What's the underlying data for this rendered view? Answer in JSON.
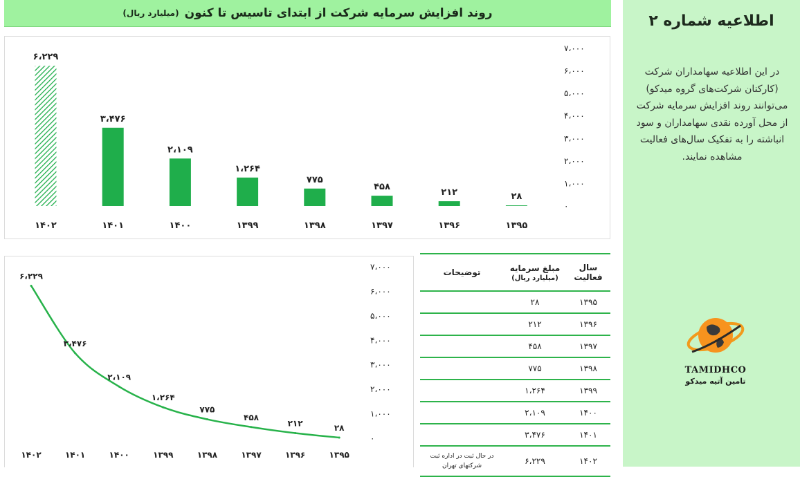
{
  "header": {
    "title": "روند افزایش سرمایه شرکت از ابتدای تاسیس تا کنون",
    "unit": "(میلیارد ریال)"
  },
  "colors": {
    "bar": "#1fae4b",
    "line": "#27b24a",
    "title_bg": "#9ff29f",
    "side_bg": "#c8f5c8"
  },
  "chart_data": [
    {
      "type": "bar",
      "categories": [
        "۱۴۰۲",
        "۱۴۰۱",
        "۱۴۰۰",
        "۱۳۹۹",
        "۱۳۹۸",
        "۱۳۹۷",
        "۱۳۹۶",
        "۱۳۹۵"
      ],
      "values": [
        6229,
        3476,
        2109,
        1264,
        775,
        458,
        212,
        28
      ],
      "value_labels": [
        "۶،۲۲۹",
        "۳،۴۷۶",
        "۲،۱۰۹",
        "۱،۲۶۴",
        "۷۷۵",
        "۴۵۸",
        "۲۱۲",
        "۲۸"
      ],
      "hatched_category": "۱۴۰۲",
      "ylim": [
        0,
        7000
      ],
      "yticks": [
        "۰",
        "۱،۰۰۰",
        "۲،۰۰۰",
        "۳،۰۰۰",
        "۴،۰۰۰",
        "۵،۰۰۰",
        "۶،۰۰۰",
        "۷،۰۰۰"
      ],
      "yaxis_side": "right",
      "grid": false
    },
    {
      "type": "line",
      "categories": [
        "۱۴۰۲",
        "۱۴۰۱",
        "۱۴۰۰",
        "۱۳۹۹",
        "۱۳۹۸",
        "۱۳۹۷",
        "۱۳۹۶",
        "۱۳۹۵"
      ],
      "values": [
        6229,
        3476,
        2109,
        1264,
        775,
        458,
        212,
        28
      ],
      "value_labels": [
        "۶،۲۲۹",
        "۳،۴۷۶",
        "۲،۱۰۹",
        "۱،۲۶۴",
        "۷۷۵",
        "۴۵۸",
        "۲۱۲",
        "۲۸"
      ],
      "ylim": [
        0,
        7000
      ],
      "yticks": [
        "۰",
        "۱،۰۰۰",
        "۲،۰۰۰",
        "۳،۰۰۰",
        "۴،۰۰۰",
        "۵،۰۰۰",
        "۶،۰۰۰",
        "۷،۰۰۰"
      ],
      "yaxis_side": "right",
      "grid": false
    }
  ],
  "table": {
    "headers": {
      "year": "سال فعالیت",
      "amount": "مبلغ سرمایه",
      "amount_unit": "(میلیارد ریال)",
      "notes": "توضیحات"
    },
    "rows": [
      {
        "year": "۱۳۹۵",
        "amount": "۲۸",
        "note": ""
      },
      {
        "year": "۱۳۹۶",
        "amount": "۲۱۲",
        "note": ""
      },
      {
        "year": "۱۳۹۷",
        "amount": "۴۵۸",
        "note": ""
      },
      {
        "year": "۱۳۹۸",
        "amount": "۷۷۵",
        "note": ""
      },
      {
        "year": "۱۳۹۹",
        "amount": "۱،۲۶۴",
        "note": ""
      },
      {
        "year": "۱۴۰۰",
        "amount": "۲،۱۰۹",
        "note": ""
      },
      {
        "year": "۱۴۰۱",
        "amount": "۳،۴۷۶",
        "note": ""
      },
      {
        "year": "۱۴۰۲",
        "amount": "۶،۲۲۹",
        "note": "در حال ثبت در اداره ثبت شرکتهای تهران"
      }
    ]
  },
  "sidebar": {
    "title": "اطلاعیه شماره ۲",
    "body": "در این اطلاعیه سهامداران شرکت (کارکنان شرکت‌های گروه میدکو) می‌توانند روند افزایش سرمایه شرکت از محل آورده نقدی سهامداران و سود انباشته را به تفکیک سال‌های فعالیت مشاهده نمایند.",
    "logo_en": "TAMIDHCO",
    "logo_fa": "تامین آتیه میدکو",
    "logo_icon": "globe-logo-icon"
  }
}
